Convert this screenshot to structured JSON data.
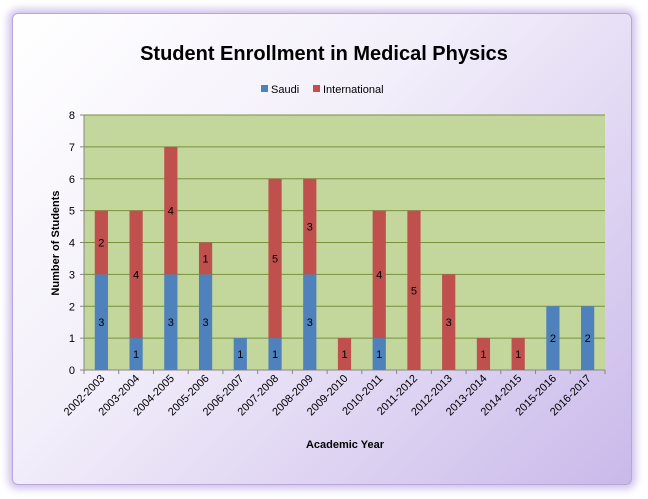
{
  "chart_data": {
    "type": "bar",
    "stacked": true,
    "title": "Student Enrollment in Medical Physics",
    "xlabel": "Academic Year",
    "ylabel": "Number of Students",
    "ylim": [
      0,
      8
    ],
    "yticks": [
      0,
      1,
      2,
      3,
      4,
      5,
      6,
      7,
      8
    ],
    "grid": true,
    "legend_position": "top",
    "categories": [
      "2002-2003",
      "2003-2004",
      "2004-2005",
      "2005-2006",
      "2006-2007",
      "2007-2008",
      "2008-2009",
      "2009-2010",
      "2010-2011",
      "2011-2012",
      "2012-2013",
      "2013-2014",
      "2014-2015",
      "2015-2016",
      "2016-2017"
    ],
    "series": [
      {
        "name": "Saudi",
        "color": "#4f81bd",
        "values": [
          3,
          1,
          3,
          3,
          1,
          1,
          3,
          0,
          1,
          0,
          0,
          0,
          0,
          2,
          2
        ]
      },
      {
        "name": "International",
        "color": "#c0504d",
        "values": [
          2,
          4,
          4,
          1,
          0,
          5,
          3,
          1,
          4,
          5,
          3,
          1,
          1,
          0,
          0
        ]
      }
    ],
    "plot_background": "#c3d69b",
    "gridline_color": "#76923c"
  }
}
